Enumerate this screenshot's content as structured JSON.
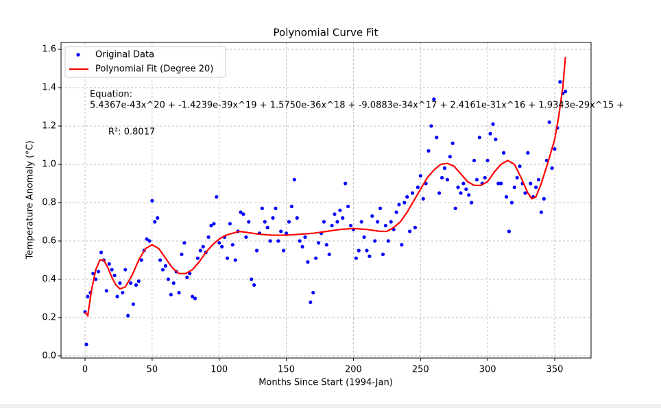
{
  "chart_data": {
    "type": "scatter",
    "title": "Polynomial Curve Fit",
    "xlabel": "Months Since Start (1994-Jan)",
    "ylabel": "Temperature Anomaly (°C)",
    "xlim": [
      -17.9,
      377.1
    ],
    "ylim": [
      -0.011,
      1.636
    ],
    "xticks": [
      0,
      50,
      100,
      150,
      200,
      250,
      300,
      350
    ],
    "yticks": [
      {
        "value": 0,
        "label": "0.0"
      },
      0.2,
      0.4,
      0.6,
      0.8,
      {
        "value": 1,
        "label": "1.0"
      },
      1.2,
      1.4,
      1.6
    ],
    "grid": true,
    "legend": "upper left",
    "annotations": [
      "Equation:",
      "5.4367e-43x^20 + -1.4239e-39x^19 + 1.5750e-36x^18 + -9.0883e-34x^17 + 2.4161e-31x^16 + 1.9343e-29x^15 +",
      "R²: 0.8017"
    ],
    "series": [
      {
        "name": "Original Data",
        "type": "scatter",
        "color": "#0000ff",
        "x": [
          0,
          1,
          2,
          4,
          6,
          8,
          10,
          12,
          14,
          16,
          18,
          20,
          22,
          24,
          26,
          28,
          30,
          32,
          34,
          36,
          38,
          40,
          42,
          44,
          46,
          48,
          50,
          52,
          54,
          56,
          58,
          60,
          62,
          64,
          66,
          68,
          70,
          72,
          74,
          76,
          78,
          80,
          82,
          84,
          86,
          88,
          90,
          92,
          94,
          96,
          98,
          100,
          102,
          104,
          106,
          108,
          110,
          112,
          114,
          116,
          118,
          120,
          122,
          124,
          126,
          128,
          130,
          132,
          134,
          136,
          138,
          140,
          142,
          144,
          146,
          148,
          150,
          152,
          154,
          156,
          158,
          160,
          162,
          164,
          166,
          168,
          170,
          172,
          174,
          176,
          178,
          180,
          182,
          184,
          186,
          188,
          190,
          192,
          194,
          196,
          198,
          200,
          202,
          204,
          206,
          208,
          210,
          212,
          214,
          216,
          218,
          220,
          222,
          224,
          226,
          228,
          230,
          232,
          234,
          236,
          238,
          240,
          242,
          244,
          246,
          248,
          250,
          252,
          254,
          256,
          258,
          260,
          262,
          264,
          266,
          268,
          270,
          272,
          274,
          276,
          278,
          280,
          282,
          284,
          286,
          288,
          290,
          292,
          294,
          296,
          298,
          300,
          302,
          304,
          306,
          308,
          310,
          312,
          314,
          316,
          318,
          320,
          322,
          324,
          326,
          328,
          330,
          332,
          334,
          336,
          338,
          340,
          342,
          344,
          346,
          348,
          350,
          352,
          354,
          356,
          358
        ],
        "values": [
          0.23,
          0.06,
          0.31,
          0.33,
          0.43,
          0.4,
          0.44,
          0.54,
          0.5,
          0.34,
          0.48,
          0.45,
          0.42,
          0.31,
          0.38,
          0.33,
          0.45,
          0.21,
          0.38,
          0.27,
          0.37,
          0.39,
          0.5,
          0.55,
          0.61,
          0.6,
          0.81,
          0.7,
          0.72,
          0.5,
          0.45,
          0.47,
          0.4,
          0.32,
          0.38,
          0.44,
          0.33,
          0.53,
          0.59,
          0.41,
          0.43,
          0.31,
          0.3,
          0.51,
          0.55,
          0.57,
          0.54,
          0.62,
          0.68,
          0.69,
          0.83,
          0.59,
          0.57,
          0.62,
          0.51,
          0.69,
          0.58,
          0.5,
          0.65,
          0.75,
          0.74,
          0.62,
          0.7,
          0.4,
          0.37,
          0.55,
          0.64,
          0.77,
          0.7,
          0.67,
          0.6,
          0.72,
          0.77,
          0.6,
          0.65,
          0.55,
          0.64,
          0.7,
          0.78,
          0.92,
          0.72,
          0.6,
          0.57,
          0.62,
          0.49,
          0.28,
          0.33,
          0.51,
          0.59,
          0.64,
          0.7,
          0.58,
          0.53,
          0.68,
          0.74,
          0.7,
          0.76,
          0.72,
          0.9,
          0.78,
          0.68,
          0.66,
          0.51,
          0.55,
          0.7,
          0.62,
          0.55,
          0.52,
          0.73,
          0.6,
          0.7,
          0.77,
          0.53,
          0.68,
          0.6,
          0.7,
          0.66,
          0.75,
          0.79,
          0.58,
          0.8,
          0.83,
          0.65,
          0.85,
          0.67,
          0.88,
          0.94,
          0.82,
          0.9,
          1.07,
          1.2,
          1.34,
          1.14,
          0.85,
          0.93,
          0.98,
          0.92,
          1.04,
          1.11,
          0.77,
          0.88,
          0.85,
          0.9,
          0.87,
          0.84,
          0.8,
          1.02,
          0.92,
          1.14,
          0.9,
          0.93,
          1.02,
          1.16,
          1.21,
          1.13,
          0.9,
          0.9,
          1.06,
          0.83,
          0.65,
          0.8,
          0.88,
          0.93,
          0.99,
          0.9,
          0.85,
          1.06,
          0.9,
          0.83,
          0.88,
          0.92,
          0.75,
          0.82,
          1.02,
          1.22,
          0.98,
          1.08,
          1.19,
          1.43,
          1.37,
          1.38
        ]
      },
      {
        "name": "Polynomial Fit (Degree 20)",
        "type": "line",
        "color": "#ff0000",
        "x": [
          0,
          2,
          5,
          8,
          11,
          14,
          17,
          20,
          23,
          26,
          30,
          35,
          40,
          45,
          50,
          55,
          60,
          65,
          70,
          75,
          80,
          85,
          90,
          95,
          100,
          105,
          110,
          115,
          120,
          130,
          140,
          150,
          160,
          170,
          180,
          190,
          200,
          210,
          220,
          225,
          230,
          235,
          240,
          245,
          250,
          255,
          260,
          265,
          270,
          275,
          280,
          285,
          290,
          295,
          300,
          305,
          310,
          315,
          320,
          325,
          330,
          333,
          336,
          340,
          345,
          350,
          353,
          356,
          358
        ],
        "values": [
          0.23,
          0.21,
          0.35,
          0.45,
          0.5,
          0.5,
          0.46,
          0.41,
          0.37,
          0.35,
          0.36,
          0.42,
          0.5,
          0.56,
          0.58,
          0.56,
          0.51,
          0.46,
          0.43,
          0.43,
          0.45,
          0.49,
          0.54,
          0.58,
          0.61,
          0.63,
          0.64,
          0.65,
          0.645,
          0.635,
          0.63,
          0.63,
          0.635,
          0.64,
          0.65,
          0.66,
          0.665,
          0.66,
          0.65,
          0.65,
          0.67,
          0.7,
          0.75,
          0.81,
          0.87,
          0.93,
          0.97,
          1.0,
          1.005,
          0.99,
          0.95,
          0.91,
          0.89,
          0.89,
          0.91,
          0.96,
          1.0,
          1.02,
          1.0,
          0.93,
          0.85,
          0.82,
          0.83,
          0.9,
          1.01,
          1.13,
          1.25,
          1.4,
          1.56
        ]
      }
    ]
  }
}
